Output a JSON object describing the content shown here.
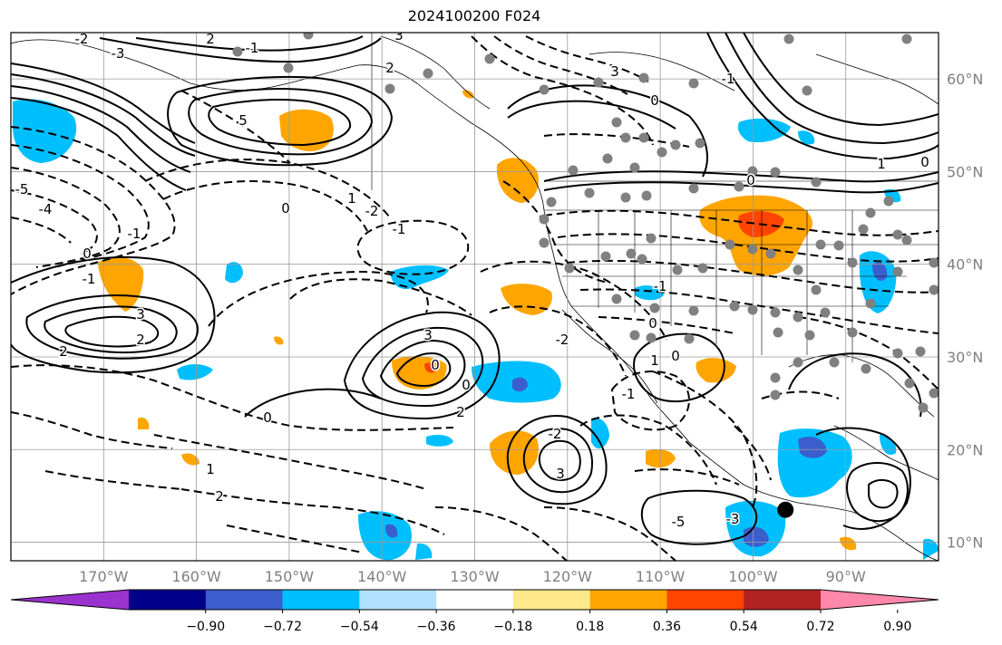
{
  "title": "2024100200 F024",
  "map": {
    "lon_range": [
      -180,
      -80
    ],
    "lat_range": [
      8,
      65
    ],
    "lon_ticks": [
      "170°W",
      "160°W",
      "150°W",
      "140°W",
      "130°W",
      "120°W",
      "110°W",
      "100°W",
      "90°W"
    ],
    "lat_ticks": [
      "10°N",
      "20°N",
      "30°N",
      "40°N",
      "50°N",
      "60°N"
    ],
    "grid": true,
    "marker": {
      "lon": -96.5,
      "lat": 13.5,
      "color": "#000000"
    },
    "station_color": "#808080",
    "contour_color": "#000000"
  },
  "colorbar": {
    "tick_labels": [
      "−0.90",
      "−0.72",
      "−0.54",
      "−0.36",
      "−0.18",
      "0.18",
      "0.36",
      "0.54",
      "0.72",
      "0.90"
    ],
    "colors": [
      "#9a32cd",
      "#00008b",
      "#3a5fcd",
      "#00bfff",
      "#b0e2ff",
      "#ffffff",
      "#fde98a",
      "#ffa500",
      "#ff4500",
      "#b22222",
      "#ff88aa"
    ]
  },
  "contour_labels": [
    "2",
    "5",
    "3",
    "2",
    "-1",
    "-2",
    "-3",
    "-4",
    "-5",
    "0",
    "1",
    "-2",
    "-1",
    "0",
    "-1",
    "3",
    "2",
    "2",
    "3",
    "-2",
    "-1",
    "0",
    "1",
    "2",
    "3",
    "0",
    "-1",
    "0",
    "1",
    "0",
    "-1",
    "0",
    "1",
    "-1",
    "0",
    "-3",
    "-5",
    "2",
    "3",
    "-2",
    "0",
    "0"
  ]
}
